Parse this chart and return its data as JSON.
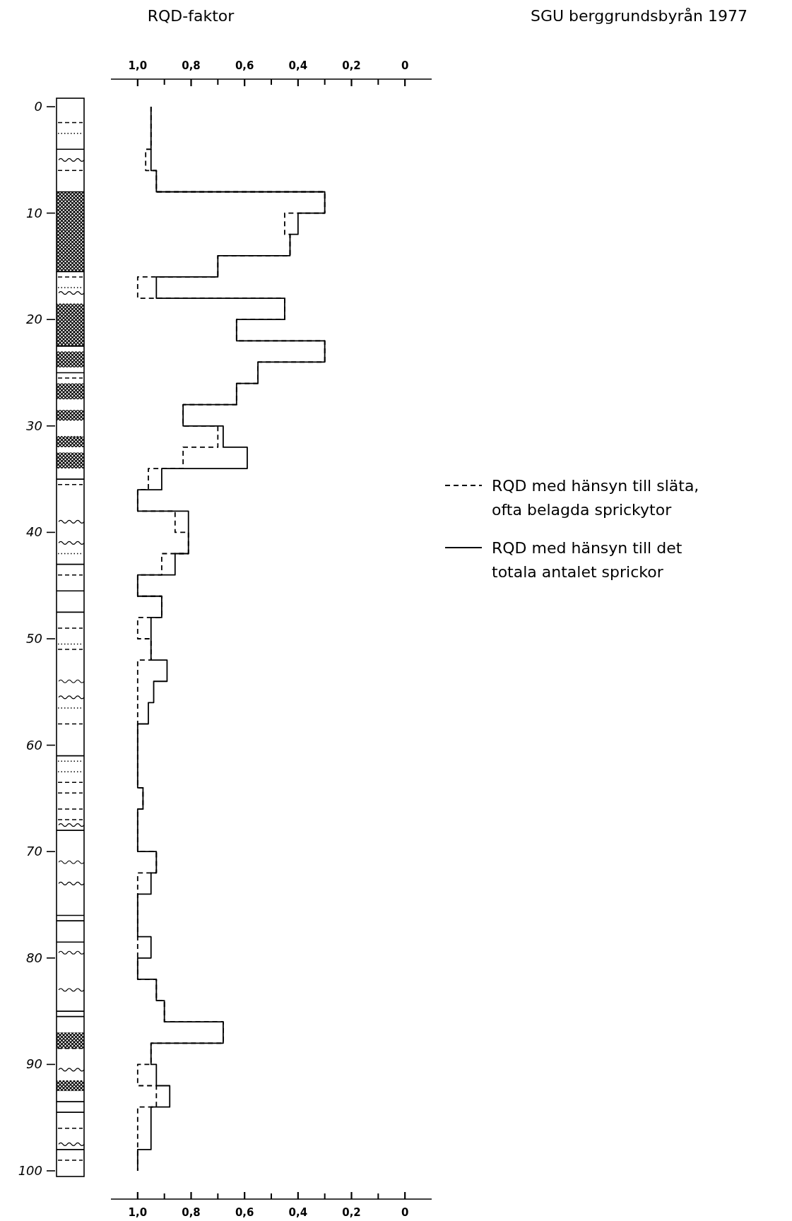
{
  "chart_data": {
    "type": "step",
    "orientation": "horizontal",
    "xlabel": "RQD-faktor",
    "annotations": [
      "SGU berggrundsbyrån 1977"
    ],
    "x": [
      0,
      2,
      4,
      6,
      8,
      10,
      12,
      14,
      16,
      18,
      20,
      22,
      24,
      26,
      28,
      30,
      32,
      34,
      36,
      38,
      40,
      42,
      44,
      46,
      48,
      50,
      52,
      54,
      56,
      58,
      60,
      62,
      64,
      66,
      68,
      70,
      72,
      74,
      76,
      78,
      80,
      82,
      84,
      86,
      88,
      90,
      92,
      94,
      96,
      98,
      100
    ],
    "xlim": [
      1.1,
      -0.1
    ],
    "xticks": [
      {
        "value": 1,
        "label": "1,0"
      },
      {
        "value": 0.8,
        "label": "0,8"
      },
      {
        "value": 0.6,
        "label": "0,6"
      },
      {
        "value": 0.4,
        "label": "0,4"
      },
      {
        "value": 0.2,
        "label": "0,2"
      },
      0
    ],
    "x2lim": [
      1.1,
      -0.1
    ],
    "x2ticks": [
      {
        "value": 1,
        "label": "1,0"
      },
      {
        "value": 0.8,
        "label": "0,8"
      },
      {
        "value": 0.6,
        "label": "0,6"
      },
      {
        "value": 0.4,
        "label": "0,4"
      },
      {
        "value": 0.2,
        "label": "0,2"
      },
      0
    ],
    "ylim": [
      100,
      0
    ],
    "yticks": [
      0,
      10,
      20,
      30,
      40,
      50,
      60,
      70,
      80,
      90,
      100
    ],
    "legend": "right",
    "series": [
      {
        "name": "RQD med hänsyn till släta, ofta belagda sprickytor",
        "color": "#000000",
        "line_style": "dashed",
        "values": [
          0.95,
          0.95,
          0.97,
          0.93,
          0.3,
          0.45,
          0.43,
          0.7,
          1.0,
          0.45,
          0.63,
          0.3,
          0.55,
          0.63,
          0.83,
          0.7,
          0.83,
          0.96,
          1.0,
          0.86,
          0.81,
          0.91,
          1.0,
          0.91,
          1.0,
          0.95,
          1.0,
          1.0,
          1.0,
          1.0,
          1.0,
          1.0,
          0.98,
          1.0,
          1.0,
          0.93,
          1.0,
          1.0,
          1.0,
          1.0,
          1.0,
          0.93,
          0.9,
          0.68,
          0.95,
          1.0,
          0.93,
          1.0,
          1.0,
          1.0,
          1.0
        ]
      },
      {
        "name": "RQD med hänsyn till det totala antalet sprickor",
        "color": "#000000",
        "line_style": "solid",
        "values": [
          0.95,
          0.95,
          0.95,
          0.93,
          0.3,
          0.4,
          0.43,
          0.7,
          0.93,
          0.45,
          0.63,
          0.3,
          0.55,
          0.63,
          0.83,
          0.68,
          0.59,
          0.91,
          1.0,
          0.81,
          0.81,
          0.86,
          1.0,
          0.91,
          0.95,
          0.95,
          0.89,
          0.94,
          0.96,
          1.0,
          1.0,
          1.0,
          0.98,
          1.0,
          1.0,
          0.93,
          0.95,
          1.0,
          1.0,
          0.95,
          1.0,
          0.93,
          0.9,
          0.68,
          0.95,
          0.93,
          0.88,
          0.95,
          0.95,
          1.0,
          1.0
        ]
      }
    ]
  }
}
